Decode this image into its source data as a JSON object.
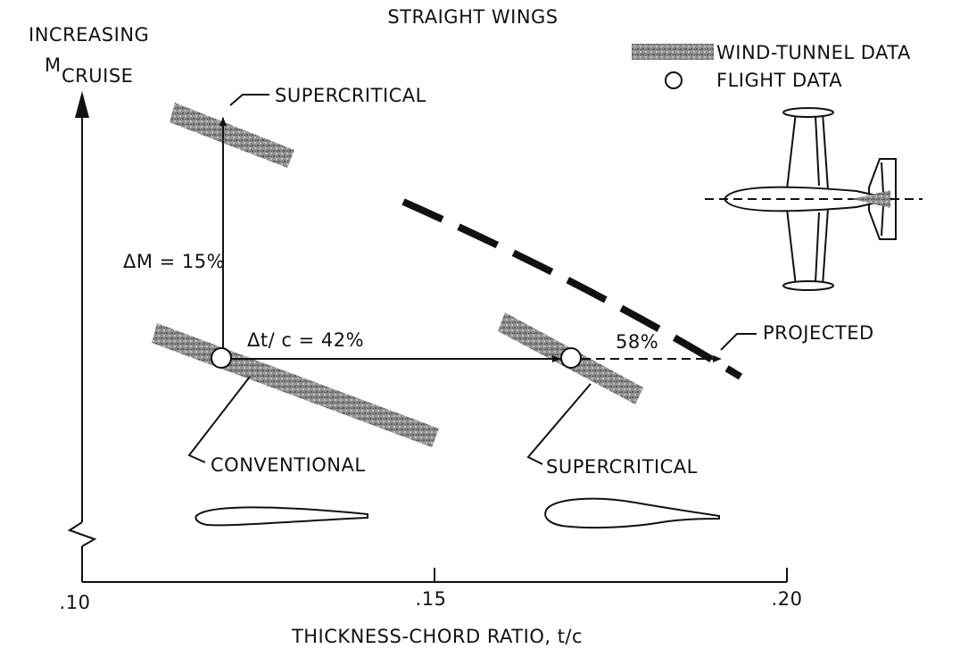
{
  "title": "STRAIGHT WINGS",
  "y_axis": {
    "label_line1": "INCREASING",
    "label_main": "M",
    "label_sub": "CRUISE"
  },
  "x_axis": {
    "label": "THICKNESS-CHORD RATIO, t/c",
    "ticks": [
      ".10",
      ".15",
      ".20"
    ]
  },
  "legend": {
    "wind_tunnel": "WIND-TUNNEL DATA",
    "flight": "FLIGHT DATA"
  },
  "labels": {
    "supercritical_top": "SUPERCRITICAL",
    "conventional": "CONVENTIONAL",
    "supercritical_bottom": "SUPERCRITICAL",
    "projected": "PROJECTED",
    "delta_m": "ΔM = 15%",
    "delta_tc": "Δt/ c = 42%",
    "pct_58": "58%"
  },
  "chart_data": {
    "type": "scatter",
    "title": "STRAIGHT WINGS",
    "xlabel": "THICKNESS-CHORD RATIO, t/c",
    "ylabel": "INCREASING M CRUISE",
    "xlim": [
      0.1,
      0.2
    ],
    "x_ticks": [
      0.1,
      0.15,
      0.2
    ],
    "flight_points": [
      {
        "name": "CONVENTIONAL",
        "t_c": 0.12
      },
      {
        "name": "SUPERCRITICAL",
        "t_c": 0.17
      }
    ],
    "projected_t_c": 0.19,
    "delta_m_percent": 15,
    "delta_tc_percent": 42,
    "projected_increase_percent": 58
  }
}
